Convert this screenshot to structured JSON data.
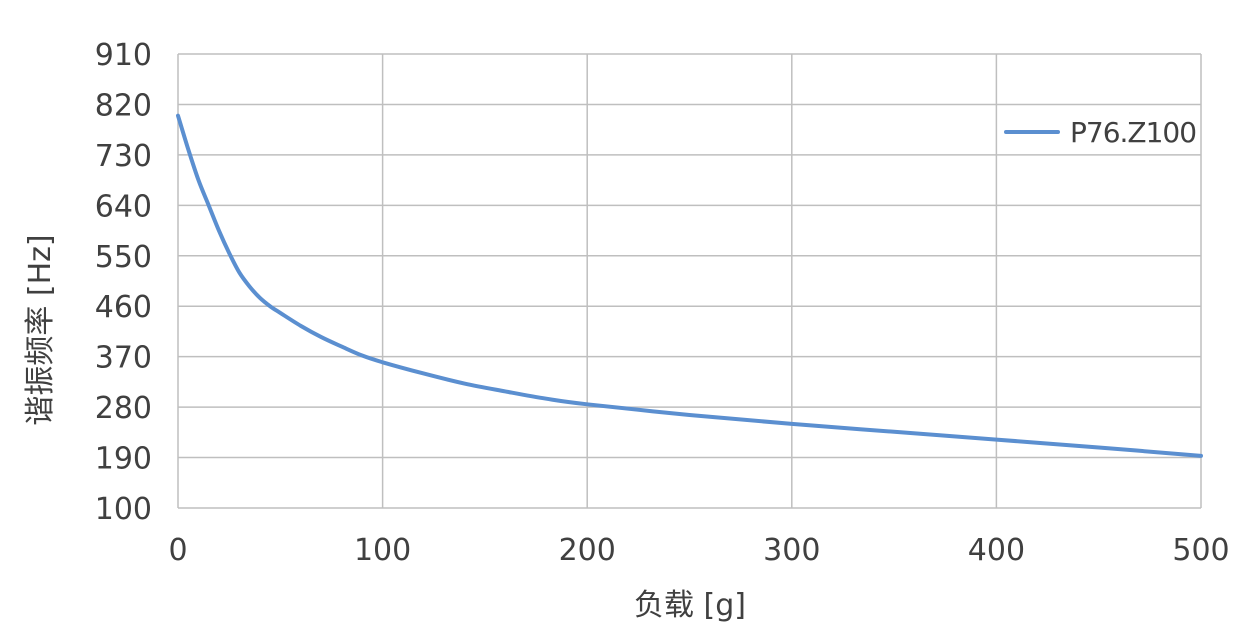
{
  "chart_data": {
    "type": "line",
    "xlabel": "负载 [g]",
    "ylabel": "谐振频率 [Hz]",
    "xlim": [
      0,
      500
    ],
    "ylim": [
      100,
      910
    ],
    "x_ticks": [
      0,
      100,
      200,
      300,
      400,
      500
    ],
    "y_ticks": [
      100,
      190,
      280,
      370,
      460,
      550,
      640,
      730,
      820,
      910
    ],
    "grid": true,
    "legend_position": "top-right",
    "colors": {
      "series": "#5b8fd0",
      "grid": "#bfbfbf",
      "text": "#404040"
    },
    "series": [
      {
        "name": "P76.Z100",
        "x": [
          0,
          5,
          10,
          15,
          20,
          25,
          30,
          35,
          40,
          45,
          50,
          60,
          70,
          80,
          90,
          100,
          120,
          140,
          160,
          180,
          200,
          250,
          300,
          350,
          400,
          450,
          500
        ],
        "y": [
          800,
          740,
          685,
          640,
          595,
          555,
          520,
          495,
          475,
          460,
          448,
          425,
          405,
          388,
          372,
          360,
          340,
          322,
          308,
          295,
          285,
          266,
          250,
          236,
          222,
          208,
          193
        ]
      }
    ]
  }
}
